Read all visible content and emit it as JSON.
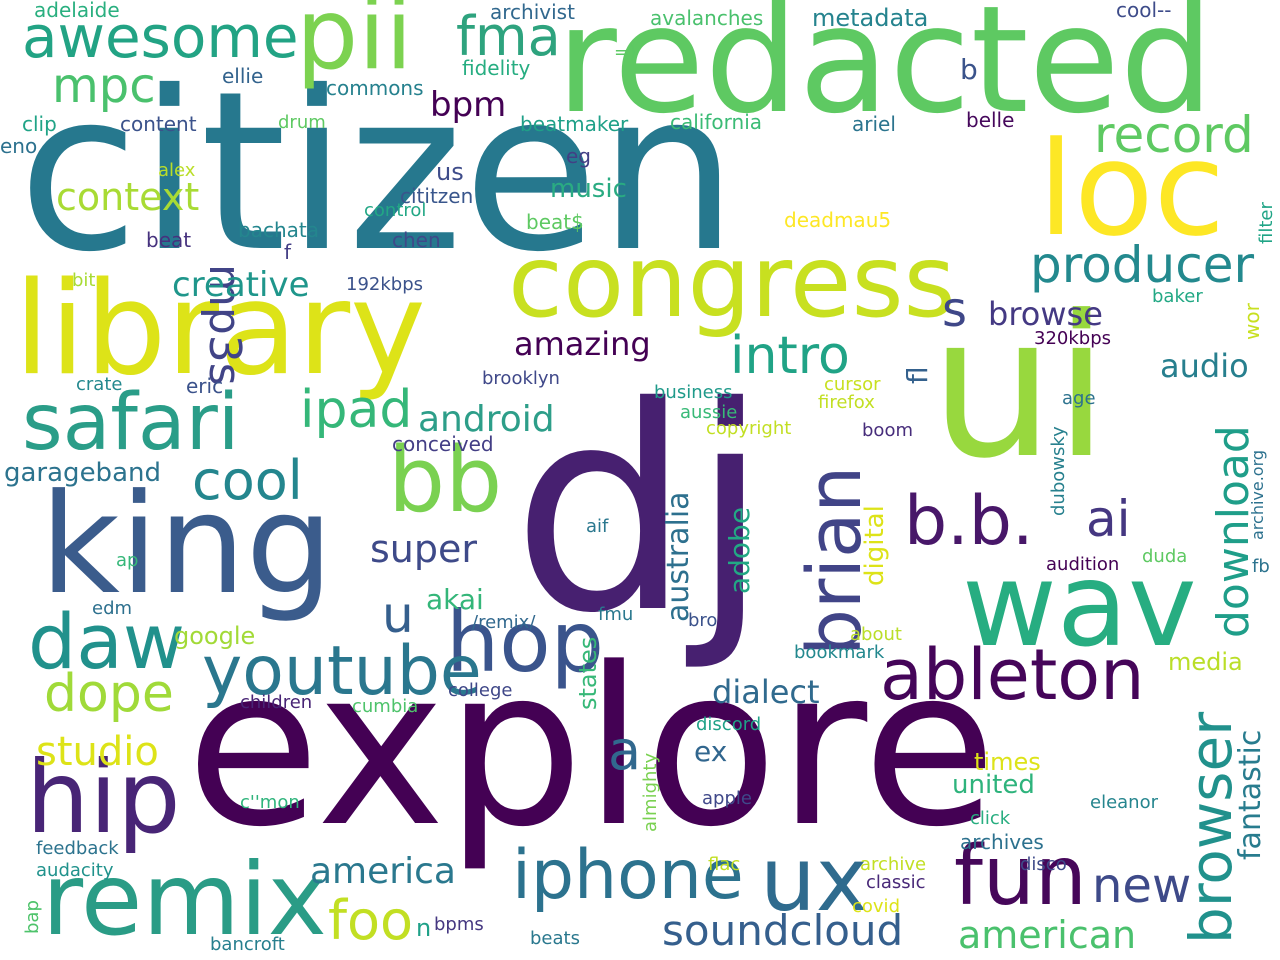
{
  "words": [
    {
      "text": "explore",
      "color": "#440154"
    },
    {
      "text": "citizen",
      "color": "#26788e"
    },
    {
      "text": "dj",
      "color": "#472070"
    },
    {
      "text": "ui",
      "color": "#98d83e"
    },
    {
      "text": "redacted",
      "color": "#5ec962"
    },
    {
      "text": "library",
      "color": "#dde318"
    },
    {
      "text": "king",
      "color": "#3b5c8c"
    },
    {
      "text": "congress",
      "color": "#c8e020"
    },
    {
      "text": "wav",
      "color": "#27ad81"
    },
    {
      "text": "loc",
      "color": "#fde725"
    },
    {
      "text": "remix",
      "color": "#2a9c86"
    },
    {
      "text": "pii",
      "color": "#7cd250"
    },
    {
      "text": "awesome",
      "color": "#22a384"
    },
    {
      "text": "safari",
      "color": "#2a9d88"
    },
    {
      "text": "bb",
      "color": "#7ad151"
    },
    {
      "text": "iphone",
      "color": "#2c728e"
    },
    {
      "text": "ux",
      "color": "#2f6b8e"
    },
    {
      "text": "fun",
      "color": "#46075a"
    },
    {
      "text": "hop",
      "color": "#3a548c"
    },
    {
      "text": "hip",
      "color": "#482576"
    },
    {
      "text": "daw",
      "color": "#21918c"
    },
    {
      "text": "ableton",
      "color": "#450559"
    },
    {
      "text": "b.b.",
      "color": "#481769"
    },
    {
      "text": "brian",
      "color": "#414487"
    },
    {
      "text": "youtube",
      "color": "#2a778e"
    },
    {
      "text": "producer",
      "color": "#23898e"
    },
    {
      "text": "record",
      "color": "#5ec962"
    },
    {
      "text": "fma",
      "color": "#2ea37e"
    },
    {
      "text": "intro",
      "color": "#20a386"
    },
    {
      "text": "mpc",
      "color": "#4ac16d"
    },
    {
      "text": "cool",
      "color": "#24868e"
    },
    {
      "text": "dope",
      "color": "#a0da39"
    },
    {
      "text": "ipad",
      "color": "#35b779"
    },
    {
      "text": "browser",
      "color": "#21918c"
    },
    {
      "text": "download",
      "color": "#1f9e89"
    },
    {
      "text": "mp3s",
      "color": "#414487"
    },
    {
      "text": "ai",
      "color": "#453781"
    },
    {
      "text": "new",
      "color": "#3e4a89"
    },
    {
      "text": "soundcloud",
      "color": "#355f8d"
    },
    {
      "text": "foo",
      "color": "#c2df23"
    },
    {
      "text": "studio",
      "color": "#dde318"
    },
    {
      "text": "american",
      "color": "#4ac16d"
    },
    {
      "text": "context",
      "color": "#a8db34"
    },
    {
      "text": "android",
      "color": "#2d9e89"
    },
    {
      "text": "super",
      "color": "#3e4a89"
    },
    {
      "text": "a",
      "color": "#31688e"
    },
    {
      "text": "u",
      "color": "#355f8d"
    },
    {
      "text": "s",
      "color": "#3f4788"
    },
    {
      "text": "america",
      "color": "#2a788e"
    },
    {
      "text": "fantastic",
      "color": "#287c8e"
    },
    {
      "text": "creative",
      "color": "#1f968b"
    },
    {
      "text": "dialect",
      "color": "#306a8e"
    },
    {
      "text": "audio",
      "color": "#277f8e"
    },
    {
      "text": "amazing",
      "color": "#440154"
    },
    {
      "text": "browse",
      "color": "#443983"
    },
    {
      "text": "australia",
      "color": "#2d708e"
    },
    {
      "text": "adobe",
      "color": "#22a884"
    },
    {
      "text": "digital",
      "color": "#dde318"
    },
    {
      "text": "akai",
      "color": "#34b679"
    },
    {
      "text": "garageband",
      "color": "#2c738e"
    },
    {
      "text": "ex",
      "color": "#31668e"
    },
    {
      "text": "music",
      "color": "#2aab82"
    },
    {
      "text": "bpm",
      "color": "#440154"
    },
    {
      "text": "metadata",
      "color": "#25838e"
    },
    {
      "text": "b",
      "color": "#3a538b"
    },
    {
      "text": "fl",
      "color": "#34618d"
    },
    {
      "text": "united",
      "color": "#2eb37c"
    },
    {
      "text": "times",
      "color": "#dde318"
    },
    {
      "text": "google",
      "color": "#a2da37"
    },
    {
      "text": "media",
      "color": "#bade28"
    },
    {
      "text": "us",
      "color": "#3e4c8a"
    },
    {
      "text": "states",
      "color": "#37b878"
    },
    {
      "text": "archivist",
      "color": "#31688e"
    },
    {
      "text": "adelaide",
      "color": "#29af7f"
    },
    {
      "text": "avalanches",
      "color": "#4ac16d"
    },
    {
      "text": "cool--",
      "color": "#3e4c8a"
    },
    {
      "text": "=)",
      "color": "#5cc863"
    },
    {
      "text": "fidelity",
      "color": "#26ad81"
    },
    {
      "text": "commons",
      "color": "#26818e"
    },
    {
      "text": "ellie",
      "color": "#33638d"
    },
    {
      "text": "drum",
      "color": "#5ec962"
    },
    {
      "text": "content",
      "color": "#3b528b"
    },
    {
      "text": "clip",
      "color": "#20a386"
    },
    {
      "text": "eno",
      "color": "#2c718e"
    },
    {
      "text": "beatmaker",
      "color": "#1fa088"
    },
    {
      "text": "california",
      "color": "#3bbb75"
    },
    {
      "text": "ariel",
      "color": "#2b748e"
    },
    {
      "text": "belle",
      "color": "#46085c"
    },
    {
      "text": "eg",
      "color": "#423f85"
    },
    {
      "text": "alex",
      "color": "#bade28"
    },
    {
      "text": "cititzen",
      "color": "#39568c"
    },
    {
      "text": "control",
      "color": "#22a785"
    },
    {
      "text": "beat$",
      "color": "#5ec962"
    },
    {
      "text": "deadmau5",
      "color": "#fde725"
    },
    {
      "text": "filter",
      "color": "#20a486"
    },
    {
      "text": "beat",
      "color": "#46327e"
    },
    {
      "text": "bachata",
      "color": "#24868e"
    },
    {
      "text": "chen",
      "color": "#3e4989"
    },
    {
      "text": "f",
      "color": "#433e85"
    },
    {
      "text": "bit",
      "color": "#a8db34"
    },
    {
      "text": "192kbps",
      "color": "#3b528b"
    },
    {
      "text": "baker",
      "color": "#22a884"
    },
    {
      "text": "wor",
      "color": "#c8e020"
    },
    {
      "text": "320kbps",
      "color": "#440154"
    },
    {
      "text": "crate",
      "color": "#23888e"
    },
    {
      "text": "eric",
      "color": "#3b528b"
    },
    {
      "text": "brooklyn",
      "color": "#3f4889"
    },
    {
      "text": "cursor",
      "color": "#c8e020"
    },
    {
      "text": "business",
      "color": "#1f9a8a"
    },
    {
      "text": "firefox",
      "color": "#c2df23"
    },
    {
      "text": "aussie",
      "color": "#38b977"
    },
    {
      "text": "age",
      "color": "#2c728e"
    },
    {
      "text": "archive.org",
      "color": "#2c718e"
    },
    {
      "text": "conceived",
      "color": "#433e85"
    },
    {
      "text": "copyright",
      "color": "#c2df23"
    },
    {
      "text": "boom",
      "color": "#472d7b"
    },
    {
      "text": "dubowsky",
      "color": "#27808e"
    },
    {
      "text": "aif",
      "color": "#2a778e"
    },
    {
      "text": "audition",
      "color": "#440154"
    },
    {
      "text": "duda",
      "color": "#5ec962"
    },
    {
      "text": "fb",
      "color": "#2c738e"
    },
    {
      "text": "ap",
      "color": "#35b779"
    },
    {
      "text": "edm",
      "color": "#2d708e"
    },
    {
      "text": "fmu",
      "color": "#2a788e"
    },
    {
      "text": "/remix/",
      "color": "#31688e"
    },
    {
      "text": "bro",
      "color": "#3b528b"
    },
    {
      "text": "about",
      "color": "#bade28"
    },
    {
      "text": "bookmark",
      "color": "#23888e"
    },
    {
      "text": "college",
      "color": "#3f4788"
    },
    {
      "text": "children",
      "color": "#482475"
    },
    {
      "text": "cumbia",
      "color": "#4ec36b"
    },
    {
      "text": "discord",
      "color": "#1fa187"
    },
    {
      "text": "almighty",
      "color": "#7ad151"
    },
    {
      "text": "c''mon",
      "color": "#2fb47c"
    },
    {
      "text": "apple",
      "color": "#3f4889"
    },
    {
      "text": "eleanor",
      "color": "#25858e"
    },
    {
      "text": "click",
      "color": "#28ae80"
    },
    {
      "text": "archives",
      "color": "#2c718e"
    },
    {
      "text": "feedback",
      "color": "#2c738e"
    },
    {
      "text": "audacity",
      "color": "#20928c"
    },
    {
      "text": "flac",
      "color": "#c2df23"
    },
    {
      "text": "archive",
      "color": "#c2df23"
    },
    {
      "text": "disco",
      "color": "#3e4a89"
    },
    {
      "text": "classic",
      "color": "#482878"
    },
    {
      "text": "covid",
      "color": "#dde318"
    },
    {
      "text": "bap",
      "color": "#4ec36b"
    },
    {
      "text": "n",
      "color": "#1fa188"
    },
    {
      "text": "bpms",
      "color": "#453781"
    },
    {
      "text": "beats",
      "color": "#2a788e"
    },
    {
      "text": "bancroft",
      "color": "#277f8e"
    }
  ]
}
